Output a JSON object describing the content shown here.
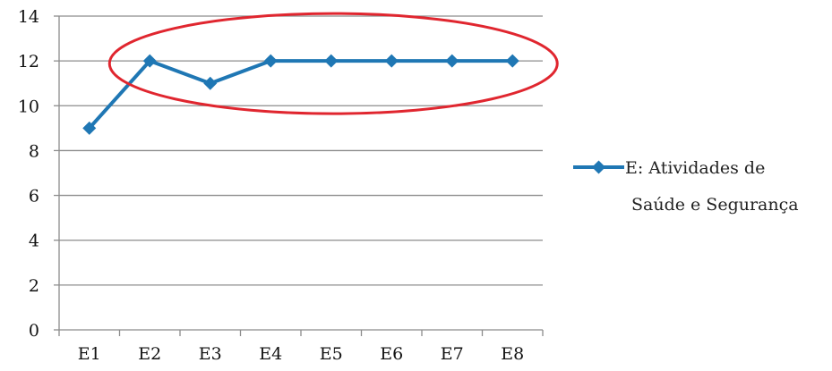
{
  "chart_data": {
    "type": "line",
    "title": "",
    "xlabel": "",
    "ylabel": "",
    "categories": [
      "E1",
      "E2",
      "E3",
      "E4",
      "E5",
      "E6",
      "E7",
      "E8"
    ],
    "ylim": [
      0,
      14
    ],
    "yticks": [
      "0",
      "2",
      "4",
      "6",
      "8",
      "10",
      "12",
      "14"
    ],
    "grid": "horizontal",
    "legend_position": "right",
    "series": [
      {
        "name": "E: Atividades de Saúde e Segurança",
        "name_lines": [
          "E: Atividades de",
          "Saúde e Segurança"
        ],
        "values": [
          9,
          12,
          11,
          12,
          12,
          12,
          12,
          12
        ],
        "color": "#1f77b4",
        "marker": "diamond"
      }
    ],
    "annotations": [
      {
        "type": "ellipse",
        "color": "#e0262f",
        "encloses_categories": [
          "E2",
          "E8"
        ]
      }
    ]
  },
  "colors": {
    "gridline": "#8c8c8c",
    "axis": "#8c8c8c",
    "series": "#1f77b4",
    "highlight": "#e0262f"
  }
}
